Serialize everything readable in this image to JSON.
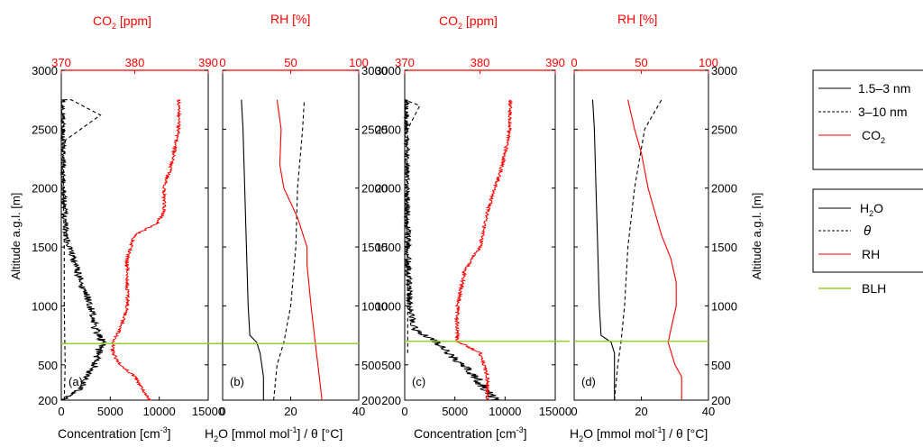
{
  "colors": {
    "black": "#000000",
    "red": "#ff0000",
    "blh": "#99cc33"
  },
  "axes_text": {
    "altitude_label": "Altitude a.g.l. [m]",
    "conc_label_main": "Concentration [cm",
    "conc_label_exp": "-3",
    "conc_label_close": "]",
    "h2o_label_main": "H",
    "h2o_label_sub": "2",
    "h2o_label_mid": "O [mmol mol",
    "h2o_label_exp": "-1",
    "h2o_label_end": "] / θ [°C]",
    "co2_top_main": "CO",
    "co2_top_sub": "2",
    "co2_top_unit": " [ppm]",
    "rh_top": "RH [%]"
  },
  "legend1": {
    "items": [
      {
        "label": "1.5–3 nm",
        "style": "solid",
        "color": "#000000"
      },
      {
        "label": "3–10 nm",
        "style": "dashed",
        "color": "#000000"
      },
      {
        "label_main": "CO",
        "label_sub": "2",
        "style": "solid",
        "color": "#ff0000"
      }
    ]
  },
  "legend2": {
    "items": [
      {
        "label_main": "H",
        "label_sub": "2",
        "label_end": "O",
        "style": "solid",
        "color": "#000000"
      },
      {
        "label": "θ",
        "style": "dashed",
        "color": "#000000"
      },
      {
        "label": "RH",
        "style": "solid",
        "color": "#ff0000"
      }
    ]
  },
  "legend3": {
    "label": "BLH",
    "color": "#99cc33"
  },
  "chart_data": [
    {
      "type": "line",
      "panel": "(a)",
      "y_axis": {
        "label": "Altitude a.g.l. [m]",
        "ticks": [
          200,
          500,
          1000,
          1500,
          2000,
          2500,
          3000
        ],
        "range": [
          200,
          3000
        ]
      },
      "x_axis": {
        "label": "Concentration [cm-3]",
        "ticks": [
          0,
          5000,
          10000,
          15000
        ],
        "tick_labels": [
          "0",
          "5000",
          "10000",
          "15000"
        ],
        "range": [
          0,
          15000
        ]
      },
      "x_axis_top": {
        "label": "CO2 [ppm]",
        "ticks": [
          370,
          380,
          390
        ],
        "range": [
          370,
          390
        ]
      },
      "blh": 680,
      "series": [
        {
          "name": "1.5–3 nm",
          "axis": "bottom",
          "style": "noisy",
          "profile": [
            [
              0,
              200
            ],
            [
              2000,
              300
            ],
            [
              2500,
              400
            ],
            [
              3500,
              500
            ],
            [
              3800,
              600
            ],
            [
              4200,
              700
            ],
            [
              3500,
              800
            ],
            [
              3000,
              1000
            ],
            [
              2000,
              1200
            ],
            [
              1200,
              1400
            ],
            [
              500,
              1600
            ],
            [
              300,
              1800
            ],
            [
              200,
              2000
            ],
            [
              150,
              2300
            ],
            [
              100,
              2750
            ]
          ]
        },
        {
          "name": "3–10 nm",
          "axis": "bottom",
          "style": "dashed",
          "profile": [
            [
              300,
              200
            ],
            [
              400,
              500
            ],
            [
              300,
              1000
            ],
            [
              300,
              1500
            ],
            [
              200,
              2000
            ],
            [
              300,
              2400
            ],
            [
              4000,
              2620
            ],
            [
              1000,
              2750
            ],
            [
              0,
              2750
            ]
          ]
        },
        {
          "name": "CO2",
          "axis": "top",
          "style": "noisy",
          "profile": [
            [
              382,
              200
            ],
            [
              381,
              300
            ],
            [
              380,
              400
            ],
            [
              378,
              500
            ],
            [
              377,
              600
            ],
            [
              377,
              700
            ],
            [
              378,
              800
            ],
            [
              379,
              1000
            ],
            [
              379,
              1200
            ],
            [
              379,
              1400
            ],
            [
              380,
              1600
            ],
            [
              383,
              1700
            ],
            [
              384,
              1800
            ],
            [
              384,
              2000
            ],
            [
              385,
              2200
            ],
            [
              386,
              2500
            ],
            [
              386,
              2750
            ]
          ]
        }
      ]
    },
    {
      "type": "line",
      "panel": "(b)",
      "y_axis": {
        "label": "Altitude a.g.l. [m]",
        "ticks": [
          200,
          500,
          1000,
          1500,
          2000,
          2500,
          3000
        ],
        "range": [
          200,
          3000
        ]
      },
      "x_axis": {
        "label": "H2O [mmol mol-1] / θ [°C]",
        "ticks": [
          0,
          20,
          40
        ],
        "range": [
          0,
          40
        ]
      },
      "x_axis_top": {
        "label": "RH [%]",
        "ticks": [
          0,
          50,
          100
        ],
        "range": [
          0,
          100
        ]
      },
      "blh": 680,
      "series": [
        {
          "name": "H2O",
          "axis": "bottom",
          "style": "solid",
          "profile": [
            [
              12,
              200
            ],
            [
              12,
              400
            ],
            [
              11,
              600
            ],
            [
              10,
              690
            ],
            [
              8,
              750
            ],
            [
              7.5,
              1000
            ],
            [
              7,
              1500
            ],
            [
              6.5,
              2000
            ],
            [
              6,
              2500
            ],
            [
              5.5,
              2750
            ]
          ]
        },
        {
          "name": "θ",
          "axis": "bottom",
          "style": "dashed",
          "profile": [
            [
              15,
              200
            ],
            [
              16,
              500
            ],
            [
              18,
              690
            ],
            [
              20,
              1000
            ],
            [
              21.5,
              1500
            ],
            [
              22,
              2000
            ],
            [
              23.5,
              2500
            ],
            [
              24,
              2750
            ]
          ]
        },
        {
          "name": "RH",
          "axis": "top",
          "style": "solid",
          "profile": [
            [
              73,
              200
            ],
            [
              70,
              500
            ],
            [
              68,
              690
            ],
            [
              65,
              1000
            ],
            [
              62,
              1350
            ],
            [
              62,
              1500
            ],
            [
              55,
              1750
            ],
            [
              45,
              2000
            ],
            [
              42,
              2200
            ],
            [
              43,
              2500
            ],
            [
              40,
              2750
            ]
          ]
        }
      ]
    },
    {
      "type": "line",
      "panel": "(c)",
      "y_axis": {
        "label": "Altitude a.g.l. [m]",
        "ticks": [
          200,
          500,
          1000,
          1500,
          2000,
          2500,
          3000
        ],
        "range": [
          200,
          3000
        ]
      },
      "x_axis": {
        "label": "Concentration [cm-3]",
        "ticks": [
          0,
          5000,
          10000,
          15000
        ],
        "tick_labels": [
          "0",
          "5000",
          "10000",
          "15000"
        ],
        "range": [
          0,
          15000
        ]
      },
      "x_axis_top": {
        "label": "CO2 [ppm]",
        "ticks": [
          370,
          380,
          390
        ],
        "range": [
          370,
          390
        ]
      },
      "blh": 700,
      "series": [
        {
          "name": "1.5–3 nm",
          "axis": "bottom",
          "style": "noisy",
          "profile": [
            [
              9000,
              200
            ],
            [
              7000,
              400
            ],
            [
              5000,
              550
            ],
            [
              3000,
              700
            ],
            [
              1000,
              800
            ],
            [
              500,
              1000
            ],
            [
              300,
              1500
            ],
            [
              200,
              2000
            ],
            [
              150,
              2500
            ],
            [
              100,
              2750
            ]
          ]
        },
        {
          "name": "3–10 nm",
          "axis": "bottom",
          "style": "dashed",
          "profile": [
            [
              300,
              600
            ],
            [
              300,
              1000
            ],
            [
              200,
              2000
            ],
            [
              300,
              2500
            ],
            [
              1500,
              2700
            ],
            [
              0,
              2750
            ]
          ]
        },
        {
          "name": "CO2",
          "axis": "top",
          "style": "noisy",
          "profile": [
            [
              381,
              200
            ],
            [
              381,
              400
            ],
            [
              380,
              600
            ],
            [
              377,
              700
            ],
            [
              377,
              800
            ],
            [
              377,
              1000
            ],
            [
              378,
              1300
            ],
            [
              380,
              1500
            ],
            [
              381,
              1800
            ],
            [
              382,
              2000
            ],
            [
              383,
              2200
            ],
            [
              384,
              2500
            ],
            [
              384,
              2750
            ]
          ]
        }
      ]
    },
    {
      "type": "line",
      "panel": "(d)",
      "y_axis": {
        "label": "Altitude a.g.l. [m]",
        "ticks": [
          200,
          500,
          1000,
          1500,
          2000,
          2500,
          3000
        ],
        "range": [
          200,
          3000
        ]
      },
      "x_axis": {
        "label": "H2O [mmol mol-1] / θ [°C]",
        "ticks": [
          0,
          20,
          40
        ],
        "range": [
          0,
          40
        ]
      },
      "x_axis_top": {
        "label": "RH [%]",
        "ticks": [
          0,
          50,
          100
        ],
        "range": [
          0,
          100
        ]
      },
      "blh": 700,
      "series": [
        {
          "name": "H2O",
          "axis": "bottom",
          "style": "solid",
          "profile": [
            [
              12,
              200
            ],
            [
              12,
              400
            ],
            [
              12,
              600
            ],
            [
              11,
              690
            ],
            [
              8,
              750
            ],
            [
              7.5,
              1000
            ],
            [
              7,
              1500
            ],
            [
              6.5,
              2000
            ],
            [
              6,
              2500
            ],
            [
              5.5,
              2750
            ]
          ]
        },
        {
          "name": "θ",
          "axis": "bottom",
          "style": "dashed",
          "profile": [
            [
              12,
              200
            ],
            [
              13,
              500
            ],
            [
              14,
              700
            ],
            [
              15,
              1000
            ],
            [
              16,
              1500
            ],
            [
              18,
              2000
            ],
            [
              21,
              2500
            ],
            [
              26,
              2750
            ]
          ]
        },
        {
          "name": "RH",
          "axis": "top",
          "style": "solid",
          "profile": [
            [
              80,
              200
            ],
            [
              80,
              400
            ],
            [
              75,
              500
            ],
            [
              70,
              690
            ],
            [
              72,
              800
            ],
            [
              76,
              1000
            ],
            [
              76,
              1200
            ],
            [
              72,
              1400
            ],
            [
              65,
              1600
            ],
            [
              60,
              1800
            ],
            [
              55,
              2000
            ],
            [
              50,
              2300
            ],
            [
              45,
              2500
            ],
            [
              40,
              2750
            ]
          ]
        }
      ]
    }
  ]
}
